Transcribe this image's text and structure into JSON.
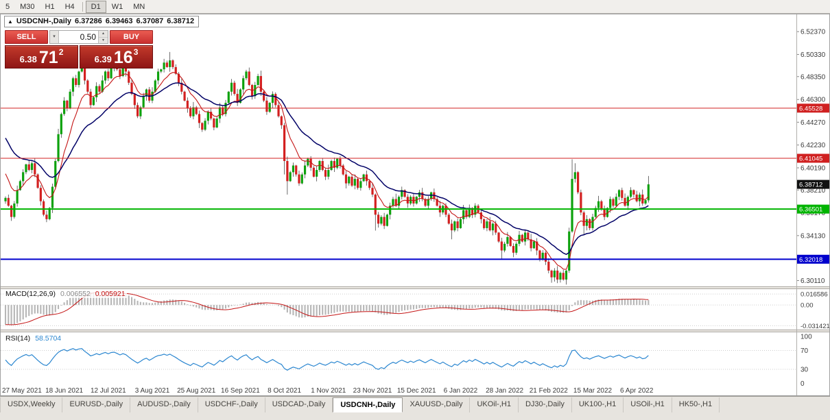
{
  "toolbar": {
    "timeframes": [
      {
        "label": "5"
      },
      {
        "label": "M30"
      },
      {
        "label": "H1"
      },
      {
        "label": "H4"
      },
      {
        "label": "D1",
        "active": true
      },
      {
        "label": "W1"
      },
      {
        "label": "MN"
      }
    ]
  },
  "icons": {
    "direction_up": "▲",
    "dropdown_arrow": "▾",
    "spinner_up": "▴",
    "spinner_down": "▾"
  },
  "chart_header": {
    "symbol": "USDCNH-,Daily",
    "open": "6.37286",
    "high": "6.39463",
    "low": "6.37087",
    "close": "6.38712"
  },
  "trade_panel": {
    "sell_label": "SELL",
    "buy_label": "BUY",
    "volume": "0.50",
    "sell_price": {
      "main": "6.38",
      "pips": "71",
      "frac": "2"
    },
    "buy_price": {
      "main": "6.39",
      "pips": "16",
      "frac": "3"
    }
  },
  "macd_panel": {
    "title": "MACD(12,26,9)",
    "value_main": "0.006552",
    "value_signal": "0.005921"
  },
  "rsi_panel": {
    "title": "RSI(14)",
    "value": "58.5704"
  },
  "tabs": [
    {
      "label": "USDX,Weekly"
    },
    {
      "label": "EURUSD-,Daily"
    },
    {
      "label": "AUDUSD-,Daily"
    },
    {
      "label": "USDCHF-,Daily"
    },
    {
      "label": "USDCAD-,Daily"
    },
    {
      "label": "USDCNH-,Daily",
      "active": true
    },
    {
      "label": "XAUUSD-,Daily"
    },
    {
      "label": "UKOil-,H1"
    },
    {
      "label": "DJ30-,Daily"
    },
    {
      "label": "UK100-,H1"
    },
    {
      "label": "USOil-,H1"
    },
    {
      "label": "HK50-,H1"
    }
  ],
  "chart_data": {
    "type": "candlestick",
    "title": "USDCNH-,Daily",
    "symbol": "USDCNH",
    "timeframe": "Daily",
    "ohlc_current": {
      "open": 6.37286,
      "high": 6.39463,
      "low": 6.37087,
      "close": 6.38712
    },
    "ylim": [
      6.2965,
      6.5385
    ],
    "y_ticks": [
      "6.52370",
      "6.50330",
      "6.48350",
      "6.46300",
      "6.44270",
      "6.42230",
      "6.40190",
      "6.38210",
      "6.36170",
      "6.34130",
      "6.30110"
    ],
    "x_ticks": [
      {
        "i": 5,
        "t": "27 May 2021"
      },
      {
        "i": 20,
        "t": "18 Jun 2021"
      },
      {
        "i": 35,
        "t": "12 Jul 2021"
      },
      {
        "i": 50,
        "t": "3 Aug 2021"
      },
      {
        "i": 65,
        "t": "25 Aug 2021"
      },
      {
        "i": 80,
        "t": "16 Sep 2021"
      },
      {
        "i": 95,
        "t": "8 Oct 2021"
      },
      {
        "i": 110,
        "t": "1 Nov 2021"
      },
      {
        "i": 125,
        "t": "23 Nov 2021"
      },
      {
        "i": 140,
        "t": "15 Dec 2021"
      },
      {
        "i": 155,
        "t": "6 Jan 2022"
      },
      {
        "i": 170,
        "t": "28 Jan 2022"
      },
      {
        "i": 185,
        "t": "21 Feb 2022"
      },
      {
        "i": 200,
        "t": "15 Mar 2022"
      },
      {
        "i": 215,
        "t": "6 Apr 2022"
      }
    ],
    "hlines": [
      {
        "label": "6.45528",
        "value": 6.45528,
        "color": "#d02020",
        "width": 1
      },
      {
        "label": "6.41045",
        "value": 6.41045,
        "color": "#d02020",
        "width": 1
      },
      {
        "label": "6.36501",
        "value": 6.36501,
        "color": "#00b400",
        "width": 2
      },
      {
        "label": "6.32018",
        "value": 6.32018,
        "color": "#0000cd",
        "width": 2
      }
    ],
    "current_price": {
      "label": "6.38712",
      "value": 6.38712,
      "color": "#111111"
    },
    "candles": {
      "first_open": 6.372,
      "colors": {
        "up": "#0da10d",
        "down": "#d32020",
        "wick": "#2e2e2e"
      },
      "closes": [
        6.375,
        6.368,
        6.358,
        6.37,
        6.382,
        6.39,
        6.398,
        6.405,
        6.4,
        6.406,
        6.396,
        6.384,
        6.372,
        6.36,
        6.356,
        6.366,
        6.385,
        6.408,
        6.432,
        6.45,
        6.462,
        6.455,
        6.47,
        6.482,
        6.476,
        6.488,
        6.492,
        6.48,
        6.47,
        6.458,
        6.465,
        6.475,
        6.47,
        6.48,
        6.488,
        6.482,
        6.492,
        6.495,
        6.49,
        6.484,
        6.492,
        6.488,
        6.478,
        6.468,
        6.458,
        6.448,
        6.456,
        6.466,
        6.472,
        6.462,
        6.47,
        6.48,
        6.488,
        6.49,
        6.496,
        6.492,
        6.498,
        6.492,
        6.486,
        6.478,
        6.47,
        6.462,
        6.455,
        6.448,
        6.456,
        6.45,
        6.442,
        6.436,
        6.444,
        6.452,
        6.446,
        6.438,
        6.446,
        6.456,
        6.45,
        6.46,
        6.47,
        6.478,
        6.468,
        6.46,
        6.472,
        6.482,
        6.488,
        6.476,
        6.466,
        6.476,
        6.484,
        6.47,
        6.462,
        6.452,
        6.46,
        6.468,
        6.458,
        6.448,
        6.44,
        6.408,
        6.39,
        6.398,
        6.404,
        6.396,
        6.388,
        6.396,
        6.404,
        6.41,
        6.402,
        6.394,
        6.4,
        6.408,
        6.4,
        6.394,
        6.4,
        6.408,
        6.402,
        6.41,
        6.404,
        6.396,
        6.388,
        6.394,
        6.386,
        6.392,
        6.384,
        6.39,
        6.396,
        6.39,
        6.384,
        6.378,
        6.36,
        6.352,
        6.358,
        6.35,
        6.36,
        6.368,
        6.374,
        6.368,
        6.376,
        6.382,
        6.376,
        6.37,
        6.376,
        6.37,
        6.376,
        6.38,
        6.374,
        6.368,
        6.374,
        6.38,
        6.374,
        6.368,
        6.362,
        6.368,
        6.36,
        6.352,
        6.346,
        6.354,
        6.348,
        6.356,
        6.364,
        6.358,
        6.366,
        6.36,
        6.368,
        6.362,
        6.356,
        6.348,
        6.354,
        6.346,
        6.352,
        6.344,
        6.336,
        6.328,
        6.334,
        6.34,
        6.332,
        6.326,
        6.334,
        6.342,
        6.336,
        6.344,
        6.338,
        6.33,
        6.336,
        6.328,
        6.32,
        6.326,
        6.318,
        6.31,
        6.304,
        6.31,
        6.302,
        6.308,
        6.302,
        6.31,
        6.345,
        6.392,
        6.398,
        6.38,
        6.362,
        6.35,
        6.356,
        6.348,
        6.358,
        6.366,
        6.372,
        6.365,
        6.358,
        6.366,
        6.374,
        6.368,
        6.376,
        6.382,
        6.375,
        6.368,
        6.376,
        6.382,
        6.378,
        6.372,
        6.378,
        6.37,
        6.373,
        6.38712
      ],
      "wick_high_pattern": [
        14,
        30,
        8,
        22,
        40,
        12,
        26,
        6,
        34,
        18,
        45,
        10,
        24,
        16,
        36,
        9,
        28,
        20,
        48,
        13,
        31,
        7,
        23
      ],
      "wick_low_pattern": [
        22,
        9,
        35,
        15,
        28,
        6,
        42,
        18,
        11,
        30,
        24,
        8,
        38,
        14,
        27,
        10,
        45,
        20,
        12,
        33,
        16,
        25,
        7,
        40,
        19
      ],
      "special": {
        "56": {
          "h": 6.5055
        },
        "95": {
          "l": 6.396
        },
        "96": {
          "l": 6.378
        },
        "126": {
          "l": 6.3458
        },
        "152": {
          "l": 6.338
        },
        "169": {
          "l": 6.3205
        },
        "186": {
          "l": 6.2992
        },
        "188": {
          "l": 6.2988
        },
        "193": {
          "h": 6.4095
        },
        "194": {
          "h": 6.406
        },
        "197": {
          "l": 6.3415
        },
        "219": {
          "o": 6.37286,
          "h": 6.39463,
          "l": 6.37087,
          "c": 6.38712
        }
      }
    },
    "overlays": [
      {
        "name": "ma-fast",
        "type": "ema",
        "period": 9,
        "color": "#c41414",
        "width": 1.1,
        "seed": 6.402
      },
      {
        "name": "ma-slow",
        "type": "ema",
        "period": 25,
        "color": "#000066",
        "width": 1.5,
        "seed": 6.433
      }
    ],
    "indicators": {
      "macd": {
        "periods": [
          12,
          26,
          9
        ],
        "seed_fast": 6.4,
        "seed_slow": 6.43,
        "ylim": [
          -0.0352,
          0.023
        ],
        "axis_labels": [
          "0.016586",
          "0.00",
          "-0.031421"
        ],
        "hist_color": "#b6b6b6",
        "signal_color": "#c41414",
        "current_main": 0.006552,
        "current_signal": 0.005921
      },
      "rsi": {
        "period": 14,
        "levels": [
          70,
          30
        ],
        "axis_labels": [
          "100",
          "70",
          "30",
          "0"
        ],
        "color": "#2a86d0",
        "current": 58.5704,
        "seed_gain": 0.003,
        "seed_loss": 0.0035
      }
    }
  }
}
